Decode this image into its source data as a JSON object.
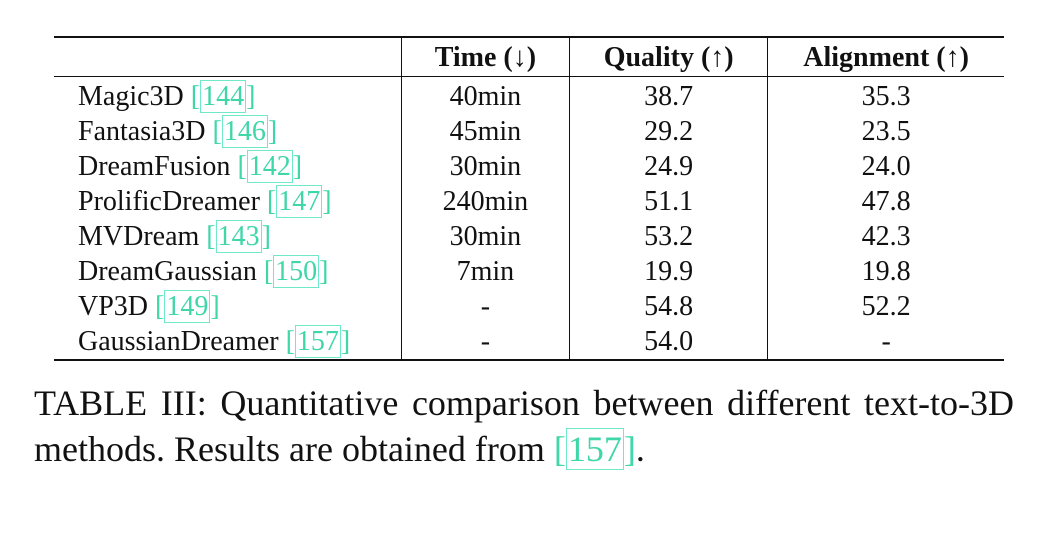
{
  "table": {
    "headers": [
      "",
      "Time (↓)",
      "Quality (↑)",
      "Alignment (↑)"
    ],
    "rows": [
      {
        "method": "Magic3D",
        "ref": "144",
        "time": "40min",
        "quality": "38.7",
        "alignment": "35.3"
      },
      {
        "method": "Fantasia3D",
        "ref": "146",
        "time": "45min",
        "quality": "29.2",
        "alignment": "23.5"
      },
      {
        "method": "DreamFusion",
        "ref": "142",
        "time": "30min",
        "quality": "24.9",
        "alignment": "24.0"
      },
      {
        "method": "ProlificDreamer",
        "ref": "147",
        "time": "240min",
        "quality": "51.1",
        "alignment": "47.8"
      },
      {
        "method": "MVDream",
        "ref": "143",
        "time": "30min",
        "quality": "53.2",
        "alignment": "42.3"
      },
      {
        "method": "DreamGaussian",
        "ref": "150",
        "time": "7min",
        "quality": "19.9",
        "alignment": "19.8"
      },
      {
        "method": "VP3D",
        "ref": "149",
        "time": "-",
        "quality": "54.8",
        "alignment": "52.2"
      },
      {
        "method": "GaussianDreamer",
        "ref": "157",
        "time": "-",
        "quality": "54.0",
        "alignment": "-"
      }
    ]
  },
  "caption": {
    "label": "TABLE III:",
    "text": "Quantitative comparison between different text-to-3D methods. Results are obtained from",
    "ref": "157",
    "end": "."
  },
  "colors": {
    "citation": "#3fd6a8",
    "text": "#111111"
  }
}
